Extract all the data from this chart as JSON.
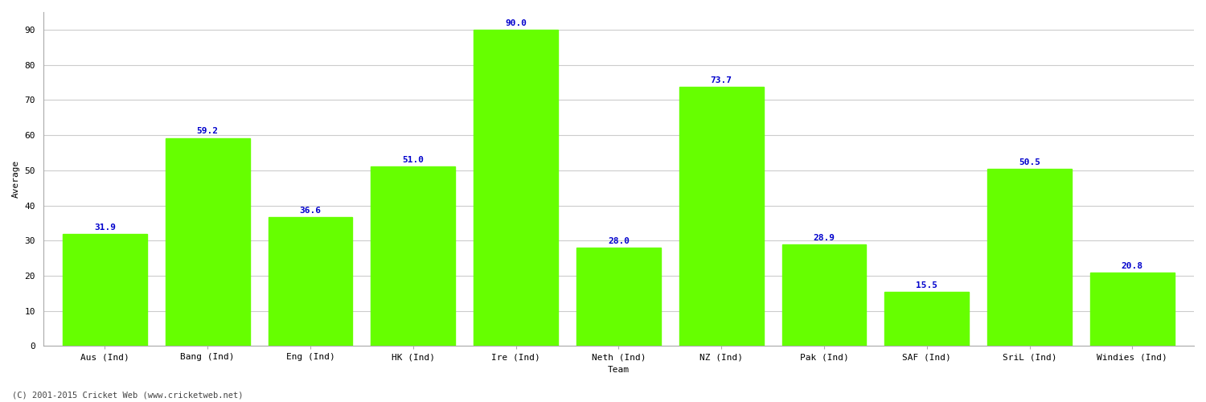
{
  "title": "",
  "categories": [
    "Aus (Ind)",
    "Bang (Ind)",
    "Eng (Ind)",
    "HK (Ind)",
    "Ire (Ind)",
    "Neth (Ind)",
    "NZ (Ind)",
    "Pak (Ind)",
    "SAF (Ind)",
    "SriL (Ind)",
    "Windies (Ind)"
  ],
  "values": [
    31.9,
    59.2,
    36.6,
    51.0,
    90.0,
    28.0,
    73.7,
    28.9,
    15.5,
    50.5,
    20.8
  ],
  "bar_color": "#66ff00",
  "bar_edge_color": "#66ff00",
  "label_color": "#0000cc",
  "xlabel": "Team",
  "ylabel": "Average",
  "ylim": [
    0,
    95
  ],
  "yticks": [
    0,
    10,
    20,
    30,
    40,
    50,
    60,
    70,
    80,
    90
  ],
  "background_color": "#ffffff",
  "plot_bg_color": "#ffffff",
  "grid_color": "#cccccc",
  "footer_text": "(C) 2001-2015 Cricket Web (www.cricketweb.net)",
  "label_fontsize": 8,
  "axis_fontsize": 8,
  "tick_fontsize": 8,
  "bar_width": 0.82
}
